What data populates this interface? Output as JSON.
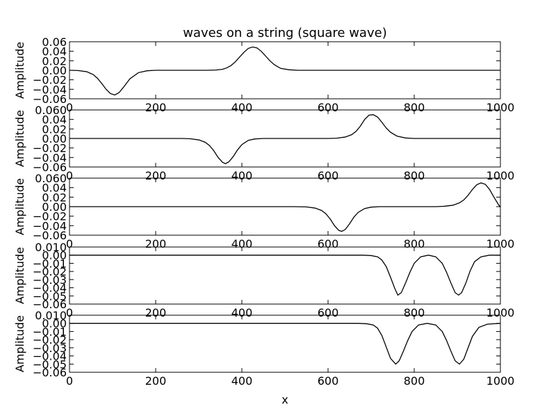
{
  "chart_data": {
    "type": "line",
    "title": "waves on a string (square wave)",
    "xlabel": "x",
    "xlim": [
      0,
      1000
    ],
    "xticks": [
      "0",
      "200",
      "400",
      "600",
      "800",
      "1000"
    ],
    "line_color": "#000000",
    "grid": false,
    "panels": [
      {
        "ylabel": "Amplitude",
        "ylim": [
          -0.06,
          0.06
        ],
        "yticks": [
          "0.06",
          "0.04",
          "0.02",
          "0.00",
          "−0.02",
          "−0.04",
          "−0.06"
        ],
        "series": [
          {
            "x": [
              0,
              20,
              40,
              55,
              65,
              75,
              85,
              95,
              105,
              115,
              125,
              140,
              160,
              180,
              200,
              300,
              320,
              340,
              355,
              365,
              375,
              385,
              395,
              405,
              415,
              425,
              435,
              445,
              455,
              465,
              475,
              490,
              510,
              530,
              600,
              800,
              1000
            ],
            "y": [
              0,
              -0.0005,
              -0.003,
              -0.009,
              -0.017,
              -0.028,
              -0.04,
              -0.049,
              -0.052,
              -0.047,
              -0.036,
              -0.018,
              -0.005,
              -0.001,
              0,
              0,
              0,
              0.0005,
              0.002,
              0.005,
              0.01,
              0.018,
              0.028,
              0.038,
              0.046,
              0.049,
              0.047,
              0.04,
              0.03,
              0.02,
              0.012,
              0.004,
              0.001,
              0,
              0,
              0,
              0
            ]
          }
        ]
      },
      {
        "ylabel": "Amplitude",
        "ylim": [
          -0.06,
          0.06
        ],
        "yticks": [
          "0.060",
          "0.04",
          "0.02",
          "0.00",
          "−0.02",
          "−0.04",
          "−0.06"
        ],
        "series": [
          {
            "x": [
              0,
              200,
              260,
              280,
              300,
              315,
              325,
              335,
              345,
              355,
              362,
              370,
              380,
              390,
              400,
              415,
              430,
              450,
              480,
              600,
              620,
              640,
              655,
              665,
              675,
              685,
              695,
              705,
              715,
              725,
              735,
              745,
              760,
              780,
              800,
              1000
            ],
            "y": [
              0,
              0,
              0,
              -0.0005,
              -0.003,
              -0.008,
              -0.015,
              -0.026,
              -0.04,
              -0.05,
              -0.053,
              -0.049,
              -0.038,
              -0.024,
              -0.013,
              -0.004,
              -0.001,
              0,
              0,
              0,
              0.0005,
              0.003,
              0.008,
              0.015,
              0.026,
              0.04,
              0.049,
              0.05,
              0.045,
              0.034,
              0.022,
              0.013,
              0.005,
              0.001,
              0,
              0
            ]
          }
        ]
      },
      {
        "ylabel": "Amplitude",
        "ylim": [
          -0.06,
          0.06
        ],
        "yticks": [
          "0.060",
          "0.04",
          "0.02",
          "0.00",
          "−0.02",
          "−0.04",
          "−0.06"
        ],
        "series": [
          {
            "x": [
              0,
              400,
              520,
              550,
              570,
              585,
              595,
              605,
              615,
              625,
              632,
              640,
              650,
              660,
              670,
              685,
              700,
              720,
              750,
              850,
              870,
              890,
              905,
              915,
              925,
              935,
              945,
              955,
              965,
              975,
              985,
              995,
              1000
            ],
            "y": [
              0,
              0,
              0,
              -0.0005,
              -0.003,
              -0.008,
              -0.015,
              -0.026,
              -0.04,
              -0.05,
              -0.052,
              -0.048,
              -0.036,
              -0.022,
              -0.012,
              -0.004,
              -0.001,
              0,
              0,
              0,
              0.0008,
              0.003,
              0.008,
              0.014,
              0.024,
              0.036,
              0.046,
              0.05,
              0.047,
              0.036,
              0.02,
              0.005,
              -0.001
            ]
          }
        ]
      },
      {
        "ylabel": "Amplitude",
        "ylim": [
          -0.06,
          0.01
        ],
        "yticks": [
          "0.010",
          "0.00",
          "−0.01",
          "−0.02",
          "−0.03",
          "−0.04",
          "−0.05",
          "−0.06"
        ],
        "series": [
          {
            "x": [
              0,
              600,
              680,
              700,
              715,
              725,
              735,
              745,
              755,
              762,
              770,
              780,
              790,
              800,
              815,
              833,
              850,
              865,
              875,
              885,
              895,
              903,
              910,
              920,
              930,
              940,
              955,
              975,
              1000
            ],
            "y": [
              0,
              0,
              0,
              -0.0005,
              -0.002,
              -0.006,
              -0.014,
              -0.027,
              -0.041,
              -0.049,
              -0.046,
              -0.034,
              -0.021,
              -0.01,
              -0.002,
              0,
              -0.002,
              -0.01,
              -0.021,
              -0.034,
              -0.046,
              -0.049,
              -0.046,
              -0.034,
              -0.019,
              -0.008,
              -0.002,
              0,
              0
            ]
          }
        ]
      },
      {
        "ylabel": "Amplitude",
        "ylim": [
          -0.06,
          0.01
        ],
        "yticks": [
          "0.010",
          "0.00",
          "−0.01",
          "−0.02",
          "−0.03",
          "−0.04",
          "−0.05",
          "−0.06"
        ],
        "series": [
          {
            "x": [
              0,
              600,
              670,
              690,
              705,
              715,
              725,
              735,
              745,
              757,
              765,
              775,
              785,
              795,
              810,
              830,
              850,
              865,
              875,
              885,
              895,
              905,
              915,
              925,
              935,
              950,
              970,
              1000
            ],
            "y": [
              0,
              0,
              0,
              -0.0005,
              -0.002,
              -0.006,
              -0.015,
              -0.029,
              -0.043,
              -0.05,
              -0.046,
              -0.034,
              -0.021,
              -0.01,
              -0.002,
              0,
              -0.002,
              -0.01,
              -0.021,
              -0.034,
              -0.046,
              -0.05,
              -0.044,
              -0.03,
              -0.016,
              -0.005,
              -0.001,
              0
            ]
          }
        ]
      }
    ]
  }
}
